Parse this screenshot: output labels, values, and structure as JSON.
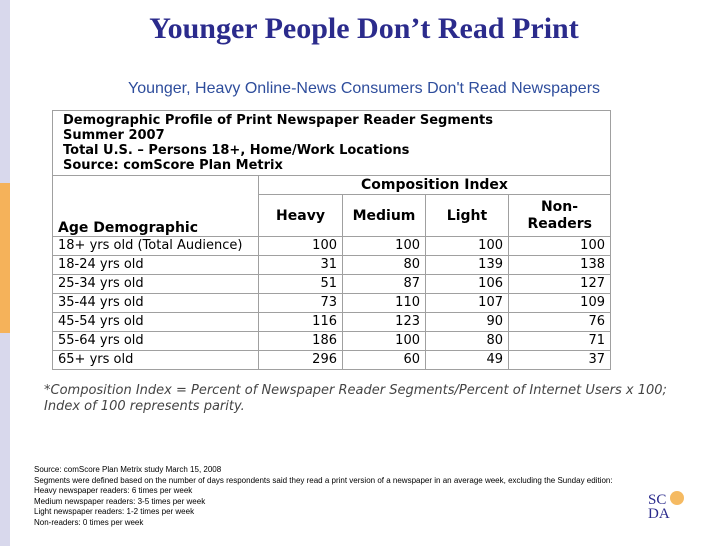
{
  "title": "Younger People Don’t Read Print",
  "subtitle": "Younger, Heavy Online-News Consumers Don't Read Newspapers",
  "table": {
    "caption_lines": [
      "Demographic Profile of Print Newspaper Reader Segments",
      "Summer 2007",
      "Total U.S. – Persons 18+, Home/Work Locations",
      "Source: comScore Plan Metrix"
    ],
    "group_header": "Composition Index",
    "columns": [
      "Age Demographic",
      "Heavy",
      "Medium",
      "Light",
      "Non-Readers"
    ],
    "rows": [
      [
        "18+ yrs old (Total Audience)",
        100,
        100,
        100,
        100
      ],
      [
        "18-24 yrs old",
        31,
        80,
        139,
        138
      ],
      [
        "25-34 yrs old",
        51,
        87,
        106,
        127
      ],
      [
        "35-44 yrs old",
        73,
        110,
        107,
        109
      ],
      [
        "45-54 yrs old",
        116,
        123,
        90,
        76
      ],
      [
        "55-64 yrs old",
        186,
        100,
        80,
        71
      ],
      [
        "65+ yrs old",
        296,
        60,
        49,
        37
      ]
    ]
  },
  "footnote": "*Composition Index = Percent of Newspaper Reader Segments/Percent of Internet Users x 100; Index of 100 represents parity.",
  "source_lines": [
    "Source:  comScore Plan Metrix study March 15, 2008",
    "Segments were defined based on the number of days respondents said they read a print version of a newspaper in an average week, excluding the Sunday edition:",
    "Heavy newspaper readers: 6 times per week",
    "Medium newspaper readers: 3-5 times per week",
    "Light newspaper readers: 1-2 times per week",
    "Non-readers: 0 times per week"
  ],
  "logo": [
    "SC",
    "DA"
  ]
}
